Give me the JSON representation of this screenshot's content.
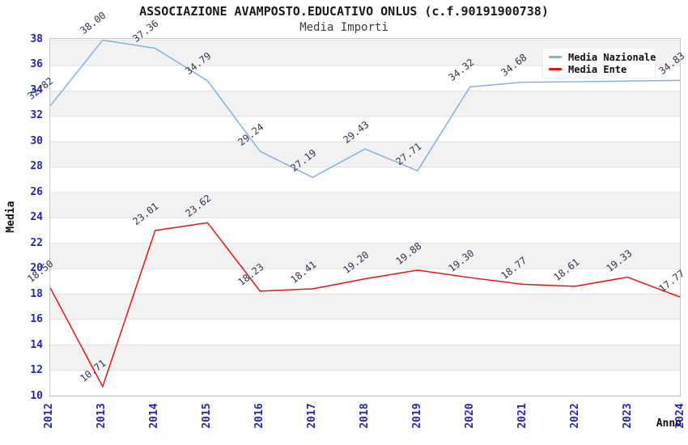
{
  "header": {
    "title": "ASSOCIAZIONE AVAMPOSTO.EDUCATIVO ONLUS (c.f.90191900738)",
    "subtitle": "Media Importi"
  },
  "legend": {
    "items": [
      {
        "label": "Media Nazionale",
        "color": "#7fb2e5"
      },
      {
        "label": "Media Ente",
        "color": "#ee1111"
      }
    ]
  },
  "axes": {
    "y_title": "Media",
    "x_title": "Anno",
    "y_ticks": [
      38,
      36,
      34,
      32,
      30,
      28,
      26,
      24,
      22,
      20,
      18,
      16,
      14,
      12,
      10
    ],
    "x_ticks": [
      "2012",
      "2013",
      "2014",
      "2015",
      "2016",
      "2017",
      "2018",
      "2019",
      "2020",
      "2021",
      "2022",
      "2023",
      "2024"
    ],
    "tick_color": "#2424cc"
  },
  "colors": {
    "band_fill": "#f2f2f2",
    "gridline": "#e0e0e0",
    "plot_border": "#c8c8c8",
    "data_label": "#333355",
    "title_text": "#1a1a1a"
  },
  "chart_data": {
    "type": "line",
    "title": "ASSOCIAZIONE AVAMPOSTO.EDUCATIVO ONLUS (c.f.90191900738)",
    "subtitle": "Media Importi",
    "xlabel": "Anno",
    "ylabel": "Media",
    "ylim": [
      10,
      38
    ],
    "y_tick_step": 2,
    "grid": "horizontal-bands",
    "legend_position": "top-right",
    "x": [
      "2012",
      "2013",
      "2014",
      "2015",
      "2016",
      "2017",
      "2018",
      "2019",
      "2020",
      "2021",
      "2022",
      "2023",
      "2024"
    ],
    "series": [
      {
        "name": "Media Nazionale",
        "color": "#7fb2e5",
        "values": [
          32.82,
          38.0,
          37.36,
          34.79,
          29.24,
          27.19,
          29.43,
          27.71,
          34.32,
          34.68,
          34.72,
          34.78,
          34.83
        ],
        "labels": [
          "32.82",
          "38.00",
          "37.36",
          "34.79",
          "29.24",
          "27.19",
          "29.43",
          "27.71",
          "34.32",
          "34.68",
          "",
          "",
          "34.83"
        ],
        "note": "2022 and 2023 point labels are hidden behind the legend box; those two values are estimated from the line"
      },
      {
        "name": "Media Ente",
        "color": "#ee1111",
        "values": [
          18.5,
          10.71,
          23.01,
          23.62,
          18.23,
          18.41,
          19.2,
          19.88,
          19.3,
          18.77,
          18.61,
          19.33,
          17.77
        ],
        "labels": [
          "18.50",
          "10.71",
          "23.01",
          "23.62",
          "18.23",
          "18.41",
          "19.20",
          "19.88",
          "19.30",
          "18.77",
          "18.61",
          "19.33",
          "17.77"
        ]
      }
    ]
  }
}
